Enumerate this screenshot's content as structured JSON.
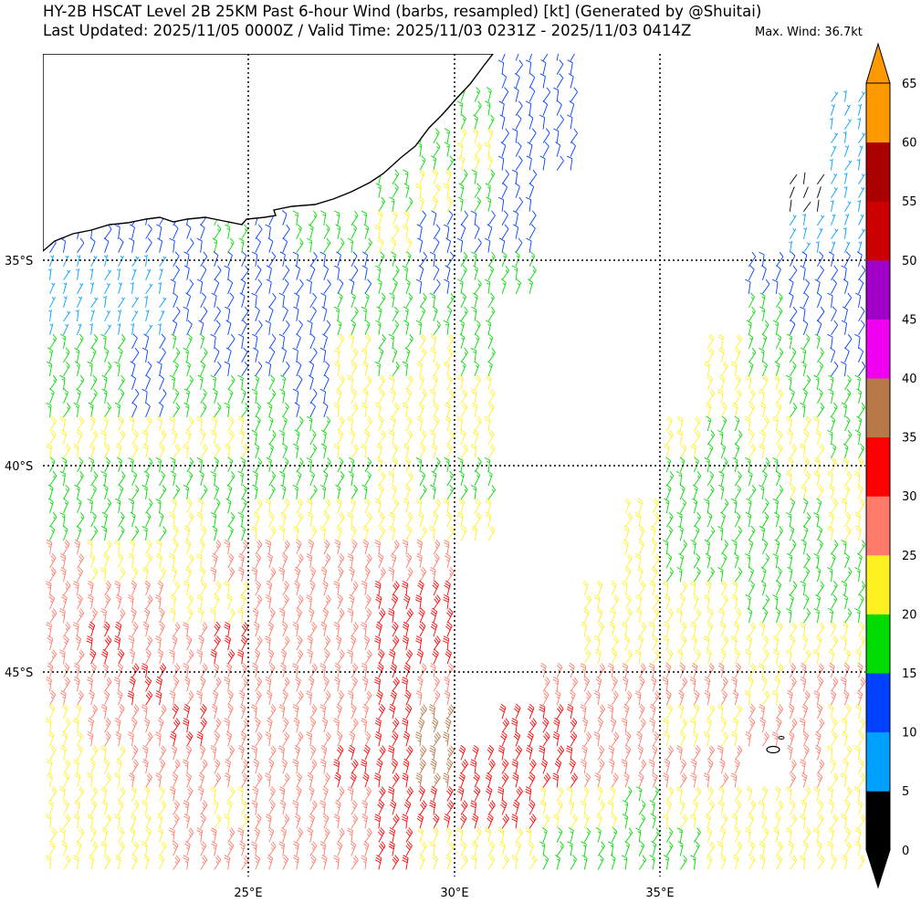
{
  "header": {
    "title": "HY-2B HSCAT Level 2B 25KM Past 6-hour Wind (barbs, resampled) [kt] (Generated by @Shuitai)",
    "subtitle": "Last Updated: 2025/11/05 0000Z / Valid Time: 2025/11/03 0231Z - 2025/11/03 0414Z",
    "max_wind": "Max. Wind: 36.7kt"
  },
  "axes": {
    "lat_labels": [
      "35°S",
      "40°S",
      "45°S"
    ],
    "lon_labels": [
      "25°E",
      "30°E",
      "35°E"
    ],
    "lon_range": [
      20,
      40
    ],
    "lat_range": [
      -30,
      -50
    ]
  },
  "colorbar": {
    "labels": [
      "0",
      "5",
      "10",
      "15",
      "20",
      "25",
      "30",
      "35",
      "40",
      "45",
      "50",
      "55",
      "60",
      "65"
    ],
    "colors": [
      "#000000",
      "#00a0ff",
      "#0040ff",
      "#00dc00",
      "#fff020",
      "#ff7a6a",
      "#ff0000",
      "#b87848",
      "#f000f0",
      "#a000c8",
      "#cc0000",
      "#aa0000",
      "#ff9900"
    ]
  },
  "wind_grid": {
    "class_speeds_kt": [
      3,
      7.5,
      12.5,
      17.5,
      22.5,
      27.5,
      32.5,
      37.5
    ],
    "rows": [
      "...........22.......",
      "..........322......1",
      ".........3422......1",
      "........3432......01",
      "222232334222......11",
      "111222223233.....222",
      "11122223333......322",
      "33232224343.....4332",
      "33233324444.....4433",
      "44444334444....43443",
      "33333333433....33344",
      "33343444444...433334",
      "5444555555....433333",
      "5554455566...4444333",
      "5655655566...4444444",
      "5565555565..55555455",
      "4556555567.665544554",
      "44555556676665555.54",
      "44454555666644344444",
      "44455555644433334444"
    ]
  }
}
